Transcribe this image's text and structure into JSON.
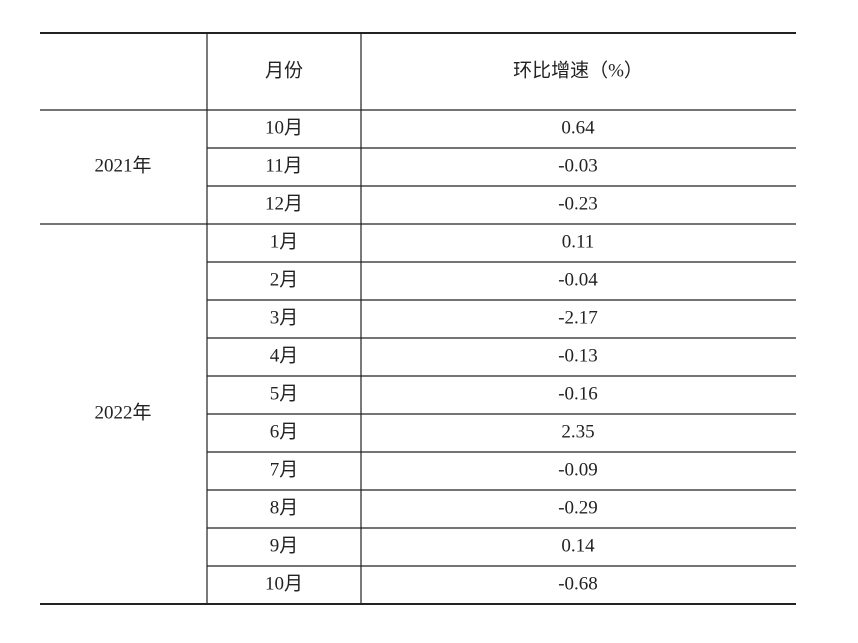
{
  "table": {
    "header": [
      "月份",
      "环比增速（%）"
    ],
    "groups": [
      {
        "year": "2021年",
        "rows": [
          [
            "10月",
            "0.64"
          ],
          [
            "11月",
            "-0.03"
          ],
          [
            "12月",
            "-0.23"
          ]
        ]
      },
      {
        "year": "2022年",
        "rows": [
          [
            "1月",
            "0.11"
          ],
          [
            "2月",
            "-0.04"
          ],
          [
            "3月",
            "-2.17"
          ],
          [
            "4月",
            "-0.13"
          ],
          [
            "5月",
            "-0.16"
          ],
          [
            "6月",
            "2.35"
          ],
          [
            "7月",
            "-0.09"
          ],
          [
            "8月",
            "-0.29"
          ],
          [
            "9月",
            "0.14"
          ],
          [
            "10月",
            "-0.68"
          ]
        ]
      }
    ]
  }
}
